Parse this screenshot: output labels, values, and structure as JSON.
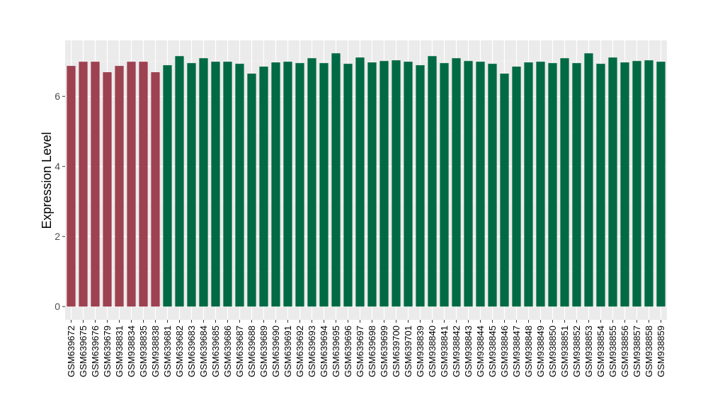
{
  "chart_data": {
    "type": "bar",
    "title": "",
    "xlabel": "",
    "ylabel": "Expression Level",
    "ylim": [
      -0.38,
      7.6
    ],
    "yticks": [
      0,
      2,
      4,
      6
    ],
    "grid": true,
    "colors": {
      "group1": "#9e4150",
      "group2": "#006a44",
      "panel": "#ebebeb"
    },
    "categories": [
      "GSM639672",
      "GSM639675",
      "GSM639676",
      "GSM639679",
      "GSM938831",
      "GSM938834",
      "GSM938835",
      "GSM938838",
      "GSM639681",
      "GSM639682",
      "GSM639683",
      "GSM639684",
      "GSM639685",
      "GSM639686",
      "GSM639687",
      "GSM639688",
      "GSM639689",
      "GSM639690",
      "GSM639691",
      "GSM639692",
      "GSM639693",
      "GSM639694",
      "GSM639695",
      "GSM639696",
      "GSM639697",
      "GSM639698",
      "GSM639699",
      "GSM639700",
      "GSM639701",
      "GSM938839",
      "GSM938840",
      "GSM938841",
      "GSM938842",
      "GSM938843",
      "GSM938844",
      "GSM938845",
      "GSM938846",
      "GSM938847",
      "GSM938848",
      "GSM938849",
      "GSM938850",
      "GSM938851",
      "GSM938852",
      "GSM938853",
      "GSM938854",
      "GSM938855",
      "GSM938856",
      "GSM938857",
      "GSM938858",
      "GSM938859"
    ],
    "values": [
      6.87,
      6.99,
      6.99,
      6.69,
      6.87,
      6.99,
      6.99,
      6.69,
      6.89,
      7.15,
      6.95,
      7.09,
      6.99,
      6.99,
      6.93,
      6.65,
      6.85,
      6.97,
      6.99,
      6.95,
      7.09,
      6.95,
      7.23,
      6.93,
      7.11,
      6.97,
      7.01,
      7.03,
      6.99,
      6.89,
      7.15,
      6.95,
      7.09,
      7.01,
      6.99,
      6.93,
      6.65,
      6.85,
      6.97,
      6.99,
      6.95,
      7.09,
      6.95,
      7.23,
      6.93,
      7.11,
      6.97,
      7.01,
      7.03,
      6.99
    ],
    "groups": [
      1,
      1,
      1,
      1,
      1,
      1,
      1,
      1,
      2,
      2,
      2,
      2,
      2,
      2,
      2,
      2,
      2,
      2,
      2,
      2,
      2,
      2,
      2,
      2,
      2,
      2,
      2,
      2,
      2,
      2,
      2,
      2,
      2,
      2,
      2,
      2,
      2,
      2,
      2,
      2,
      2,
      2,
      2,
      2,
      2,
      2,
      2,
      2,
      2,
      2
    ]
  }
}
